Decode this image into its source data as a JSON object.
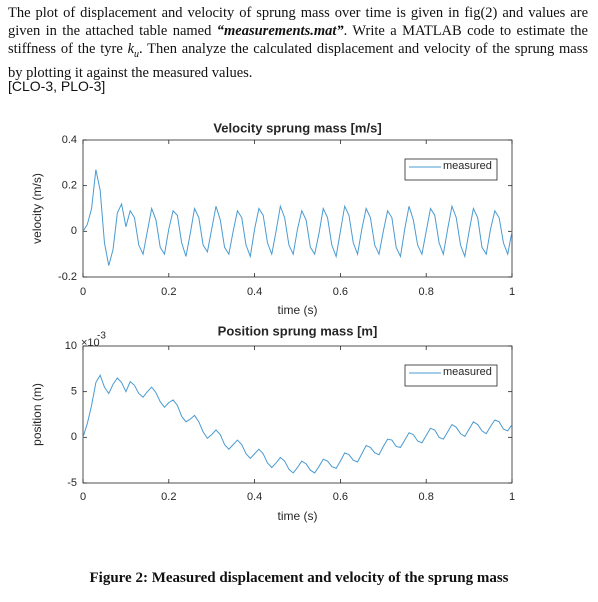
{
  "document": {
    "paragraph": [
      "The plot of displacement and velocity of sprung mass over time is given in fig(2) and values are given in the attached table named ",
      "“measurements.mat”",
      ". Write a MATLAB code to estimate the stiffness of the tyre ",
      "k",
      "u",
      ". Then analyze the calculated displacement and velocity of the sprung mass by plotting it against the measured values."
    ],
    "outcomes": "[CLO-3, PLO-3]",
    "caption": "Figure 2: Measured displacement and velocity of the sprung mass"
  },
  "chart_data": [
    {
      "type": "line",
      "title": "Velocity sprung mass [m/s]",
      "x_label": "time (s)",
      "y_label": "velocity (m/s)",
      "xlim": [
        0,
        1
      ],
      "xticks": [
        0,
        0.2,
        0.4,
        0.6,
        0.8,
        1
      ],
      "ylim": [
        -0.2,
        0.4
      ],
      "yticks": [
        -0.2,
        0,
        0.2,
        0.4
      ],
      "legend": "northeast",
      "grid": false,
      "x": [
        0,
        0.01,
        0.02,
        0.03,
        0.04,
        0.05,
        0.06,
        0.07,
        0.08,
        0.09,
        0.1,
        0.11,
        0.12,
        0.13,
        0.14,
        0.15,
        0.16,
        0.17,
        0.18,
        0.19,
        0.2,
        0.21,
        0.22,
        0.23,
        0.24,
        0.25,
        0.26,
        0.27,
        0.28,
        0.29,
        0.3,
        0.31,
        0.32,
        0.33,
        0.34,
        0.35,
        0.36,
        0.37,
        0.38,
        0.39,
        0.4,
        0.41,
        0.42,
        0.43,
        0.44,
        0.45,
        0.46,
        0.47,
        0.48,
        0.49,
        0.5,
        0.51,
        0.52,
        0.53,
        0.54,
        0.55,
        0.56,
        0.57,
        0.58,
        0.59,
        0.6,
        0.61,
        0.62,
        0.63,
        0.64,
        0.65,
        0.66,
        0.67,
        0.68,
        0.69,
        0.7,
        0.71,
        0.72,
        0.73,
        0.74,
        0.75,
        0.76,
        0.77,
        0.78,
        0.79,
        0.8,
        0.81,
        0.82,
        0.83,
        0.84,
        0.85,
        0.86,
        0.87,
        0.88,
        0.89,
        0.9,
        0.91,
        0.92,
        0.93,
        0.94,
        0.95,
        0.96,
        0.97,
        0.98,
        0.99,
        1
      ],
      "series": [
        {
          "name": "measured",
          "color": "#4a9bd1",
          "values": [
            0,
            0.03,
            0.1,
            0.27,
            0.18,
            -0.05,
            -0.15,
            -0.08,
            0.08,
            0.12,
            0.02,
            0.09,
            0.06,
            -0.06,
            -0.1,
            0.0,
            0.1,
            0.05,
            -0.07,
            -0.1,
            0.01,
            0.09,
            0.07,
            -0.05,
            -0.11,
            -0.01,
            0.1,
            0.06,
            -0.06,
            -0.09,
            0.01,
            0.11,
            0.05,
            -0.07,
            -0.1,
            0.0,
            0.09,
            0.06,
            -0.06,
            -0.11,
            0.01,
            0.1,
            0.07,
            -0.05,
            -0.1,
            0.0,
            0.11,
            0.06,
            -0.06,
            -0.1,
            0.01,
            0.09,
            0.05,
            -0.07,
            -0.1,
            -0.01,
            0.1,
            0.06,
            -0.06,
            -0.11,
            0.0,
            0.11,
            0.07,
            -0.05,
            -0.1,
            0.01,
            0.1,
            0.06,
            -0.06,
            -0.1,
            0.0,
            0.09,
            0.06,
            -0.07,
            -0.11,
            0.01,
            0.11,
            0.05,
            -0.06,
            -0.1,
            0.0,
            0.1,
            0.07,
            -0.05,
            -0.1,
            0.01,
            0.11,
            0.06,
            -0.06,
            -0.11,
            0.0,
            0.1,
            0.06,
            -0.07,
            -0.1,
            0.01,
            0.09,
            0.06,
            -0.05,
            -0.1,
            0.0
          ]
        }
      ]
    },
    {
      "type": "line",
      "title": "Position sprung mass [m]",
      "x_label": "time (s)",
      "y_label": "position (m)",
      "y_scale_base": "×10",
      "y_scale_exponent": "-3",
      "xlim": [
        0,
        1
      ],
      "xticks": [
        0,
        0.2,
        0.4,
        0.6,
        0.8,
        1
      ],
      "ylim": [
        -5,
        10
      ],
      "yticks": [
        -5,
        0,
        5,
        10
      ],
      "legend": "northeast",
      "grid": false,
      "x": [
        0,
        0.01,
        0.02,
        0.03,
        0.04,
        0.05,
        0.06,
        0.07,
        0.08,
        0.09,
        0.1,
        0.11,
        0.12,
        0.13,
        0.14,
        0.15,
        0.16,
        0.17,
        0.18,
        0.19,
        0.2,
        0.21,
        0.22,
        0.23,
        0.24,
        0.25,
        0.26,
        0.27,
        0.28,
        0.29,
        0.3,
        0.31,
        0.32,
        0.33,
        0.34,
        0.35,
        0.36,
        0.37,
        0.38,
        0.39,
        0.4,
        0.41,
        0.42,
        0.43,
        0.44,
        0.45,
        0.46,
        0.47,
        0.48,
        0.49,
        0.5,
        0.51,
        0.52,
        0.53,
        0.54,
        0.55,
        0.56,
        0.57,
        0.58,
        0.59,
        0.6,
        0.61,
        0.62,
        0.63,
        0.64,
        0.65,
        0.66,
        0.67,
        0.68,
        0.69,
        0.7,
        0.71,
        0.72,
        0.73,
        0.74,
        0.75,
        0.76,
        0.77,
        0.78,
        0.79,
        0.8,
        0.81,
        0.82,
        0.83,
        0.84,
        0.85,
        0.86,
        0.87,
        0.88,
        0.89,
        0.9,
        0.91,
        0.92,
        0.93,
        0.94,
        0.95,
        0.96,
        0.97,
        0.98,
        0.99,
        1
      ],
      "series": [
        {
          "name": "measured",
          "color": "#4a9bd1",
          "values": [
            0,
            1.5,
            3.5,
            6,
            6.8,
            5.5,
            4.8,
            5.8,
            6.5,
            6,
            5,
            6.1,
            5.7,
            4.8,
            4.4,
            5.0,
            5.5,
            4.9,
            3.9,
            3.3,
            3.8,
            4.1,
            3.5,
            2.3,
            1.7,
            2.0,
            2.4,
            1.7,
            0.6,
            -0.1,
            0.3,
            0.8,
            0.3,
            -0.8,
            -1.3,
            -0.8,
            -0.3,
            -0.8,
            -1.8,
            -2.3,
            -1.8,
            -1.3,
            -1.8,
            -2.8,
            -3.3,
            -2.8,
            -2.2,
            -2.6,
            -3.5,
            -3.9,
            -3.3,
            -2.6,
            -2.9,
            -3.6,
            -3.9,
            -3.2,
            -2.4,
            -2.6,
            -3.2,
            -3.4,
            -2.6,
            -1.7,
            -1.9,
            -2.5,
            -2.7,
            -1.8,
            -0.9,
            -1.1,
            -1.7,
            -1.9,
            -1.0,
            -0.2,
            -0.3,
            -1.0,
            -1.1,
            -0.3,
            0.5,
            0.3,
            -0.4,
            -0.6,
            0.2,
            1.0,
            0.8,
            0.0,
            -0.2,
            0.6,
            1.4,
            1.1,
            0.4,
            0.1,
            0.9,
            1.7,
            1.4,
            0.7,
            0.4,
            1.2,
            1.9,
            1.7,
            0.9,
            0.7,
            1.4
          ]
        }
      ]
    }
  ]
}
